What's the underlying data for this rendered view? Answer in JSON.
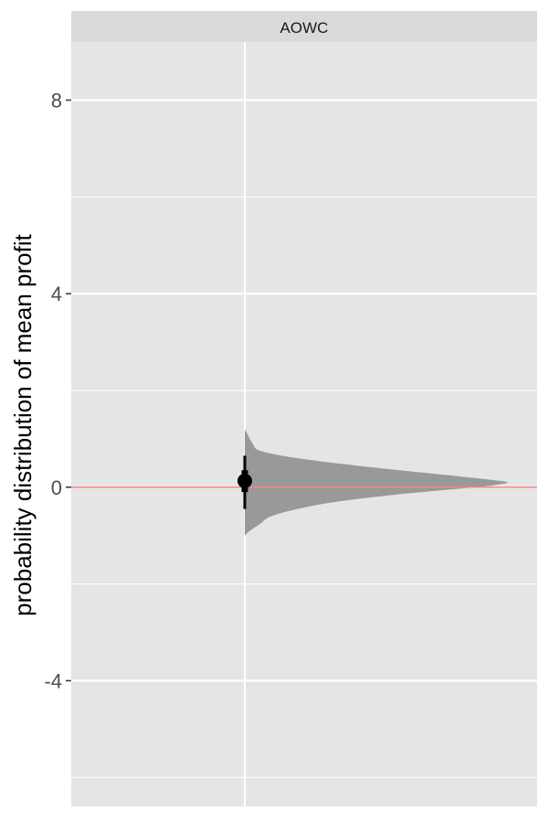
{
  "chart_data": {
    "type": "halfeye",
    "facet_label": "AOWC",
    "ylabel": "probability distribution of mean profit",
    "ylim": [
      -6.6,
      9.2
    ],
    "y_ticks": [
      -4,
      0,
      4,
      8
    ],
    "y_tick_labels": [
      "-4",
      "0",
      "4",
      "8"
    ],
    "reference_line": {
      "y": 0,
      "color": "#ff7f7f"
    },
    "interval": {
      "median": 0.13,
      "inner": [
        -0.1,
        0.35
      ],
      "outer": [
        -0.45,
        0.65
      ]
    },
    "distribution": {
      "y": [
        -1.0,
        -0.9,
        -0.75,
        -0.6,
        -0.45,
        -0.3,
        -0.15,
        0.0,
        0.05,
        0.1,
        0.15,
        0.3,
        0.45,
        0.6,
        0.75,
        0.9,
        1.1,
        1.2
      ],
      "density": [
        0.0,
        0.02,
        0.06,
        0.1,
        0.2,
        0.35,
        0.58,
        0.88,
        0.96,
        1.0,
        0.94,
        0.68,
        0.42,
        0.2,
        0.06,
        0.03,
        0.01,
        0.0
      ]
    },
    "colors": {
      "panel_background": "#e5e5e5",
      "strip_background": "#d9d9d9",
      "gridline": "#ffffff",
      "density_fill": "#999999",
      "interval": "#000000"
    }
  }
}
